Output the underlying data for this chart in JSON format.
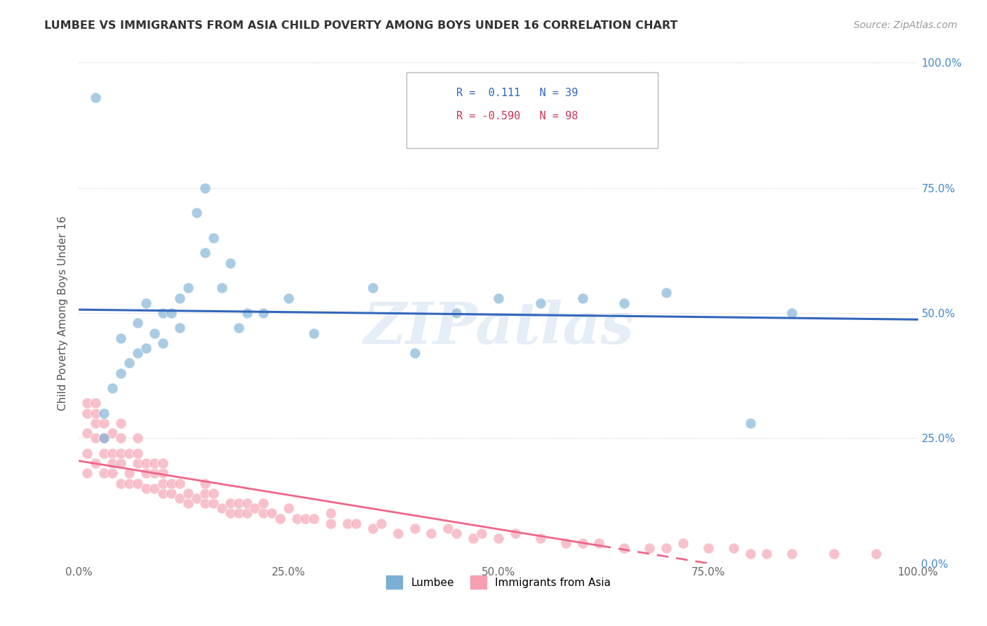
{
  "title": "LUMBEE VS IMMIGRANTS FROM ASIA CHILD POVERTY AMONG BOYS UNDER 16 CORRELATION CHART",
  "source": "Source: ZipAtlas.com",
  "ylabel": "Child Poverty Among Boys Under 16",
  "lumbee_color": "#7BAFD4",
  "asia_color": "#F4A0B0",
  "lumbee_line_color": "#3366BB",
  "asia_line_color": "#EE6688",
  "lumbee_R": 0.111,
  "lumbee_N": 39,
  "asia_R": -0.59,
  "asia_N": 98,
  "watermark": "ZIPatlas",
  "xlim": [
    0,
    100
  ],
  "ylim": [
    0,
    100
  ],
  "ytick_vals": [
    0,
    25,
    50,
    75,
    100
  ],
  "ytick_labels": [
    "0.0%",
    "25.0%",
    "50.0%",
    "75.0%",
    "100.0%"
  ],
  "xtick_vals": [
    0,
    25,
    50,
    75,
    100
  ],
  "xtick_labels": [
    "0.0%",
    "25.0%",
    "50.0%",
    "75.0%",
    "100.0%"
  ],
  "lumbee_x": [
    2,
    3,
    4,
    5,
    5,
    6,
    7,
    7,
    8,
    8,
    9,
    10,
    10,
    11,
    12,
    12,
    13,
    14,
    15,
    15,
    16,
    17,
    18,
    19,
    20,
    22,
    25,
    28,
    35,
    40,
    45,
    50,
    55,
    60,
    65,
    70,
    80,
    85,
    3
  ],
  "lumbee_y": [
    93,
    30,
    35,
    38,
    45,
    40,
    42,
    48,
    43,
    52,
    46,
    44,
    50,
    50,
    47,
    53,
    55,
    70,
    75,
    62,
    65,
    55,
    60,
    47,
    50,
    50,
    53,
    46,
    55,
    42,
    50,
    53,
    52,
    53,
    52,
    54,
    28,
    50,
    25
  ],
  "asia_x": [
    1,
    1,
    1,
    1,
    1,
    2,
    2,
    2,
    2,
    2,
    3,
    3,
    3,
    3,
    4,
    4,
    4,
    4,
    5,
    5,
    5,
    5,
    5,
    6,
    6,
    6,
    7,
    7,
    7,
    7,
    8,
    8,
    8,
    9,
    9,
    9,
    10,
    10,
    10,
    10,
    11,
    11,
    12,
    12,
    13,
    13,
    14,
    15,
    15,
    15,
    16,
    16,
    17,
    18,
    18,
    19,
    19,
    20,
    20,
    21,
    22,
    22,
    23,
    24,
    25,
    26,
    27,
    28,
    30,
    30,
    32,
    33,
    35,
    36,
    38,
    40,
    42,
    44,
    45,
    47,
    48,
    50,
    52,
    55,
    58,
    60,
    62,
    65,
    68,
    70,
    72,
    75,
    78,
    80,
    82,
    85,
    90,
    95
  ],
  "asia_y": [
    22,
    26,
    30,
    32,
    18,
    20,
    25,
    28,
    30,
    32,
    18,
    22,
    25,
    28,
    18,
    22,
    26,
    20,
    16,
    20,
    22,
    25,
    28,
    18,
    22,
    16,
    16,
    20,
    22,
    25,
    15,
    18,
    20,
    15,
    18,
    20,
    14,
    16,
    18,
    20,
    14,
    16,
    13,
    16,
    12,
    14,
    13,
    12,
    14,
    16,
    12,
    14,
    11,
    10,
    12,
    10,
    12,
    10,
    12,
    11,
    10,
    12,
    10,
    9,
    11,
    9,
    9,
    9,
    8,
    10,
    8,
    8,
    7,
    8,
    6,
    7,
    6,
    7,
    6,
    5,
    6,
    5,
    6,
    5,
    4,
    4,
    4,
    3,
    3,
    3,
    4,
    3,
    3,
    2,
    2,
    2,
    2,
    2
  ]
}
